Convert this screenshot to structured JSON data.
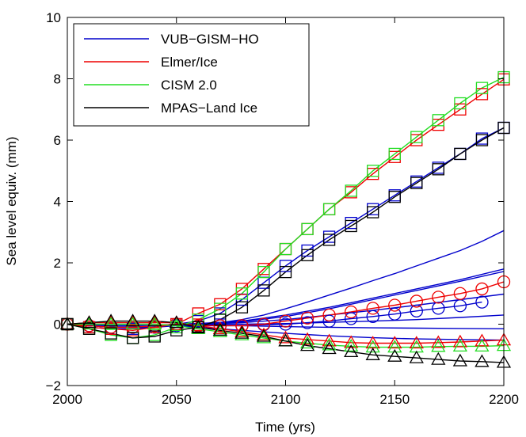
{
  "chart_data": {
    "type": "line",
    "xlabel": "Time (yrs)",
    "ylabel": "Sea level equiv. (mm)",
    "xlim": [
      2000,
      2200
    ],
    "ylim": [
      -2,
      10
    ],
    "xticks": [
      "2000",
      "2050",
      "2100",
      "2150",
      "2200"
    ],
    "yticks": [
      "−2",
      "0",
      "2",
      "4",
      "6",
      "8",
      "10"
    ],
    "grid": false,
    "legend_position": "top-left",
    "legend": [
      {
        "label": "VUB−GISM−HO",
        "color": "#0000cc"
      },
      {
        "label": "Elmer/Ice",
        "color": "#ee0000"
      },
      {
        "label": "CISM 2.0",
        "color": "#22dd22"
      },
      {
        "label": "MPAS−Land Ice",
        "color": "#000000"
      }
    ],
    "series": [
      {
        "model": "VUB-GISM-HO",
        "color": "#0000cc",
        "marker": "none",
        "x": [
          2000,
          2010,
          2020,
          2030,
          2040,
          2050,
          2060,
          2070,
          2080,
          2090,
          2100,
          2110,
          2120,
          2130,
          2140,
          2150,
          2160,
          2170,
          2180,
          2190,
          2200
        ],
        "y": [
          0,
          -0.05,
          -0.1,
          -0.1,
          -0.05,
          0,
          0.02,
          0.05,
          0.15,
          0.3,
          0.5,
          0.72,
          0.95,
          1.18,
          1.42,
          1.65,
          1.9,
          2.15,
          2.4,
          2.7,
          3.05
        ]
      },
      {
        "model": "VUB-GISM-HO",
        "color": "#0000cc",
        "marker": "none",
        "x": [
          2000,
          2020,
          2040,
          2050,
          2060,
          2080,
          2100,
          2120,
          2140,
          2160,
          2180,
          2200
        ],
        "y": [
          0,
          -0.05,
          -0.05,
          0,
          0.02,
          0.1,
          0.3,
          0.55,
          0.85,
          1.15,
          1.45,
          1.8
        ]
      },
      {
        "model": "VUB-GISM-HO",
        "color": "#0000cc",
        "marker": "none",
        "x": [
          2000,
          2020,
          2040,
          2050,
          2060,
          2080,
          2100,
          2120,
          2140,
          2160,
          2180,
          2200
        ],
        "y": [
          0,
          -0.05,
          -0.05,
          0,
          0,
          0.08,
          0.25,
          0.5,
          0.8,
          1.1,
          1.4,
          1.72
        ]
      },
      {
        "model": "VUB-GISM-HO",
        "color": "#0000cc",
        "marker": "none",
        "x": [
          2000,
          2020,
          2040,
          2050,
          2060,
          2080,
          2100,
          2120,
          2140,
          2160,
          2180,
          2200
        ],
        "y": [
          0,
          -0.05,
          -0.05,
          0,
          0,
          0.05,
          0.15,
          0.3,
          0.45,
          0.62,
          0.8,
          0.98
        ]
      },
      {
        "model": "VUB-GISM-HO",
        "color": "#0000cc",
        "marker": "none",
        "x": [
          2000,
          2020,
          2040,
          2050,
          2060,
          2080,
          2100,
          2120,
          2140,
          2160,
          2180,
          2200
        ],
        "y": [
          0,
          -0.05,
          -0.05,
          0,
          0,
          0,
          0.02,
          0.06,
          0.1,
          0.15,
          0.22,
          0.3
        ]
      },
      {
        "model": "VUB-GISM-HO",
        "color": "#0000cc",
        "marker": "none",
        "x": [
          2000,
          2020,
          2040,
          2050,
          2060,
          2080,
          2100,
          2120,
          2140,
          2160,
          2180,
          2200
        ],
        "y": [
          0,
          -0.05,
          -0.05,
          0,
          -0.02,
          -0.05,
          -0.08,
          -0.1,
          -0.12,
          -0.13,
          -0.14,
          -0.15
        ]
      },
      {
        "model": "VUB-GISM-HO",
        "color": "#0000cc",
        "marker": "none",
        "x": [
          2000,
          2020,
          2040,
          2050,
          2060,
          2080,
          2100,
          2120,
          2140,
          2160,
          2180,
          2200
        ],
        "y": [
          0,
          -0.05,
          -0.05,
          -0.05,
          -0.1,
          -0.2,
          -0.3,
          -0.38,
          -0.44,
          -0.48,
          -0.5,
          -0.52
        ]
      },
      {
        "model": "VUB-GISM-HO",
        "color": "#0000cc",
        "marker": "square",
        "x": [
          2000,
          2010,
          2020,
          2030,
          2040,
          2050,
          2060,
          2070,
          2080,
          2090,
          2100,
          2110,
          2120,
          2130,
          2140,
          2150,
          2160,
          2170,
          2180,
          2190,
          2200
        ],
        "y": [
          0,
          -0.1,
          -0.15,
          -0.15,
          -0.1,
          0,
          0.1,
          0.35,
          0.8,
          1.35,
          1.9,
          2.4,
          2.85,
          3.3,
          3.75,
          4.2,
          4.65,
          5.1,
          5.55,
          6.05,
          6.4
        ]
      },
      {
        "model": "VUB-GISM-HO",
        "color": "#0000cc",
        "marker": "circle",
        "x": [
          2000,
          2010,
          2020,
          2030,
          2040,
          2050,
          2060,
          2070,
          2080,
          2090,
          2100,
          2110,
          2120,
          2130,
          2140,
          2150,
          2160,
          2170,
          2180,
          2190
        ],
        "y": [
          0,
          -0.05,
          -0.1,
          -0.1,
          -0.1,
          -0.05,
          -0.05,
          -0.05,
          -0.05,
          -0.02,
          0,
          0.05,
          0.1,
          0.18,
          0.25,
          0.33,
          0.43,
          0.52,
          0.6,
          0.72
        ]
      },
      {
        "model": "Elmer/Ice",
        "color": "#ee0000",
        "marker": "square",
        "x": [
          2000,
          2010,
          2020,
          2030,
          2040,
          2050,
          2060,
          2070,
          2080,
          2090,
          2100,
          2110,
          2120,
          2130,
          2140,
          2150,
          2160,
          2170,
          2180,
          2190,
          2200
        ],
        "y": [
          0,
          -0.1,
          -0.15,
          -0.2,
          -0.1,
          0,
          0.35,
          0.65,
          1.15,
          1.8,
          2.45,
          3.1,
          3.75,
          4.3,
          4.9,
          5.45,
          6.0,
          6.5,
          7.0,
          7.5,
          7.98
        ]
      },
      {
        "model": "Elmer/Ice",
        "color": "#ee0000",
        "marker": "circle",
        "x": [
          2000,
          2010,
          2020,
          2030,
          2040,
          2050,
          2060,
          2070,
          2080,
          2090,
          2100,
          2110,
          2120,
          2130,
          2140,
          2150,
          2160,
          2170,
          2180,
          2190,
          2200
        ],
        "y": [
          0,
          -0.05,
          -0.1,
          -0.1,
          -0.05,
          0,
          -0.05,
          -0.05,
          -0.05,
          0,
          0.1,
          0.2,
          0.3,
          0.4,
          0.52,
          0.62,
          0.75,
          0.88,
          1.0,
          1.15,
          1.38
        ]
      },
      {
        "model": "Elmer/Ice",
        "color": "#ee0000",
        "marker": "triangle",
        "x": [
          2000,
          2010,
          2020,
          2030,
          2040,
          2050,
          2060,
          2070,
          2080,
          2090,
          2100,
          2110,
          2120,
          2130,
          2140,
          2150,
          2160,
          2170,
          2180,
          2190,
          2200
        ],
        "y": [
          0,
          0.05,
          0.05,
          0.05,
          0.05,
          0.05,
          -0.05,
          -0.15,
          -0.25,
          -0.35,
          -0.45,
          -0.5,
          -0.55,
          -0.6,
          -0.62,
          -0.62,
          -0.62,
          -0.6,
          -0.58,
          -0.55,
          -0.52
        ]
      },
      {
        "model": "CISM 2.0",
        "color": "#22dd22",
        "marker": "square",
        "x": [
          2000,
          2010,
          2020,
          2030,
          2040,
          2050,
          2060,
          2070,
          2080,
          2090,
          2100,
          2110,
          2120,
          2130,
          2140,
          2150,
          2160,
          2170,
          2180,
          2190,
          2200
        ],
        "y": [
          0,
          -0.15,
          -0.35,
          -0.45,
          -0.35,
          -0.1,
          0.15,
          0.5,
          1.0,
          1.7,
          2.45,
          3.1,
          3.75,
          4.35,
          5.0,
          5.55,
          6.1,
          6.65,
          7.2,
          7.7,
          8.05
        ]
      },
      {
        "model": "CISM 2.0",
        "color": "#22dd22",
        "marker": "triangle",
        "x": [
          2000,
          2010,
          2020,
          2030,
          2040,
          2050,
          2060,
          2070,
          2080,
          2090,
          2100,
          2110,
          2120,
          2130,
          2140,
          2150,
          2160,
          2170,
          2180,
          2190,
          2200
        ],
        "y": [
          0,
          0,
          0,
          0,
          0,
          -0.05,
          -0.15,
          -0.25,
          -0.35,
          -0.45,
          -0.55,
          -0.62,
          -0.68,
          -0.72,
          -0.75,
          -0.75,
          -0.75,
          -0.73,
          -0.72,
          -0.72,
          -0.7
        ]
      },
      {
        "model": "MPAS-Land Ice",
        "color": "#000000",
        "marker": "square",
        "x": [
          2000,
          2010,
          2020,
          2030,
          2040,
          2050,
          2060,
          2070,
          2080,
          2090,
          2100,
          2110,
          2120,
          2130,
          2140,
          2150,
          2160,
          2170,
          2180,
          2190,
          2200
        ],
        "y": [
          0,
          -0.15,
          -0.3,
          -0.45,
          -0.4,
          -0.2,
          -0.1,
          0.15,
          0.55,
          1.1,
          1.7,
          2.25,
          2.75,
          3.2,
          3.65,
          4.15,
          4.6,
          5.05,
          5.55,
          6.0,
          6.4
        ]
      },
      {
        "model": "MPAS-Land Ice",
        "color": "#000000",
        "marker": "triangle",
        "x": [
          2000,
          2010,
          2020,
          2030,
          2040,
          2050,
          2060,
          2070,
          2080,
          2090,
          2100,
          2110,
          2120,
          2130,
          2140,
          2150,
          2160,
          2170,
          2180,
          2190,
          2200
        ],
        "y": [
          0,
          0.05,
          0.1,
          0.1,
          0.1,
          0.05,
          -0.1,
          -0.2,
          -0.3,
          -0.4,
          -0.55,
          -0.7,
          -0.8,
          -0.9,
          -1.0,
          -1.05,
          -1.1,
          -1.15,
          -1.2,
          -1.22,
          -1.25
        ]
      }
    ]
  }
}
